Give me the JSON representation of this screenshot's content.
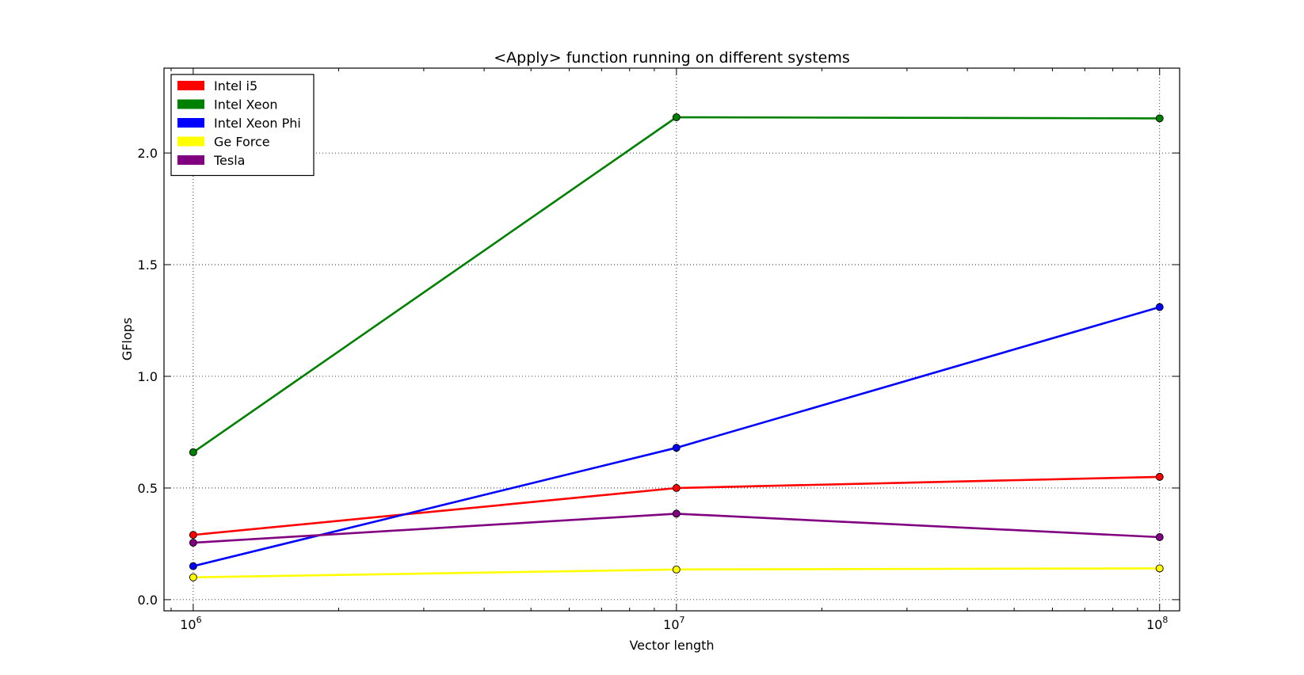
{
  "chart_data": {
    "type": "line",
    "title": "<Apply> function running on different systems",
    "xlabel": "Vector length",
    "ylabel": "GFlops",
    "x_scale": "log",
    "x": [
      1000000,
      10000000,
      100000000
    ],
    "xlim": [
      870000,
      110000000
    ],
    "ylim": [
      -0.05,
      2.38
    ],
    "x_ticks": [
      {
        "value": 1000000,
        "base": "10",
        "exp": "6"
      },
      {
        "value": 10000000,
        "base": "10",
        "exp": "7"
      },
      {
        "value": 100000000,
        "base": "10",
        "exp": "8"
      }
    ],
    "y_ticks": [
      {
        "value": 0.0,
        "label": "0.0"
      },
      {
        "value": 0.5,
        "label": "0.5"
      },
      {
        "value": 1.0,
        "label": "1.0"
      },
      {
        "value": 1.5,
        "label": "1.5"
      },
      {
        "value": 2.0,
        "label": "2.0"
      }
    ],
    "grid": true,
    "legend_position": "top-left",
    "series": [
      {
        "name": "Intel i5",
        "color": "#ff0000",
        "values": [
          0.29,
          0.5,
          0.55
        ]
      },
      {
        "name": "Intel Xeon",
        "color": "#008000",
        "values": [
          0.66,
          2.16,
          2.155
        ]
      },
      {
        "name": "Intel Xeon Phi",
        "color": "#0000ff",
        "values": [
          0.15,
          0.68,
          1.31
        ]
      },
      {
        "name": "Ge Force",
        "color": "#ffff00",
        "values": [
          0.1,
          0.135,
          0.14
        ]
      },
      {
        "name": "Tesla",
        "color": "#800080",
        "values": [
          0.255,
          0.385,
          0.28
        ]
      }
    ]
  }
}
